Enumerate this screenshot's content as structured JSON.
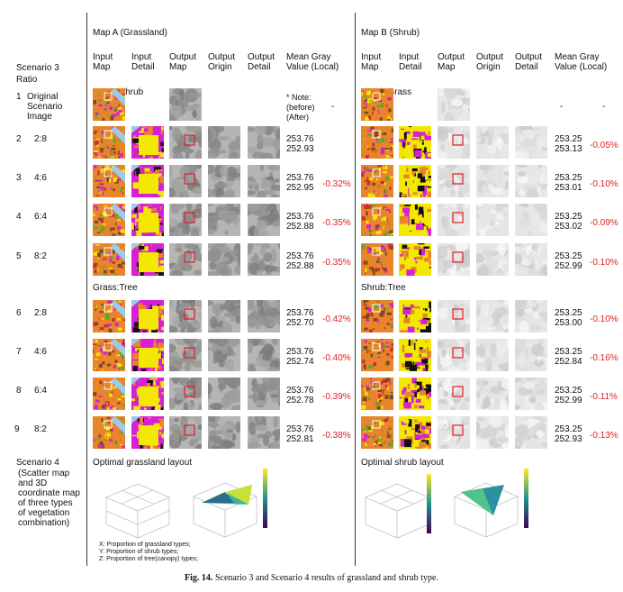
{
  "map_a_title": "Map A (Grassland)",
  "map_b_title": "Map B (Shrub)",
  "col_headers_a": [
    "Input\nMap",
    "Input\nDetail",
    "Output\nMap",
    "Output\nOrigin",
    "Output\nDetail",
    "Mean Gray\nValue (Local)"
  ],
  "col_headers_b": [
    "Input\nMap",
    "Input\nDetail",
    "Output\nMap",
    "Output\nOrigin",
    "Output\nDetail",
    "Mean Gray\nValue (Local)"
  ],
  "scenario3_label": "Scenario 3",
  "ratio_label": "Ratio",
  "group1_a": "Grass:Shrub",
  "group1_b": "Shrub:Grass",
  "group2_a": "Grass:Tree",
  "group2_b": "Shrub:Tree",
  "row1": {
    "num": "1",
    "label": "Original\nScenario\nImage",
    "note": "* Note:\n(before)\n(After)",
    "a_dash": "-",
    "b_dash1": "-",
    "b_dash2": "-"
  },
  "rows": [
    {
      "num": "2",
      "ratio": "2:8",
      "a_vals": "253.76\n252.93",
      "a_pct": "",
      "b_vals": "253.25\n253.13",
      "b_pct": "-0.05%"
    },
    {
      "num": "3",
      "ratio": "4:6",
      "a_vals": "253.76\n252.95",
      "a_pct": "-0.32%",
      "b_vals": "253.25\n253.01",
      "b_pct": "-0.10%"
    },
    {
      "num": "4",
      "ratio": "6:4",
      "a_vals": "253.76\n252.88",
      "a_pct": "-0.35%",
      "b_vals": "253.25\n253.02",
      "b_pct": "-0.09%"
    },
    {
      "num": "5",
      "ratio": "8:2",
      "a_vals": "253.76\n252.88",
      "a_pct": "-0.35%",
      "b_vals": "253.25\n252.99",
      "b_pct": "-0.10%"
    },
    {
      "num": "6",
      "ratio": "2:8",
      "a_vals": "253.76\n252.70",
      "a_pct": "-0.42%",
      "b_vals": "253.25\n253.00",
      "b_pct": "-0.10%"
    },
    {
      "num": "7",
      "ratio": "4:6",
      "a_vals": "253.76\n252.74",
      "a_pct": "-0.40%",
      "b_vals": "253.25\n252.84",
      "b_pct": "-0.16%"
    },
    {
      "num": "8",
      "ratio": "6:4",
      "a_vals": "253.76\n252.78",
      "a_pct": "-0.39%",
      "b_vals": "253.25\n252.99",
      "b_pct": "-0.11%"
    },
    {
      "num": "9",
      "ratio": "8:2",
      "a_vals": "253.76\n252.81",
      "a_pct": "-0.38%",
      "b_vals": "253.25\n252.93",
      "b_pct": "-0.13%"
    }
  ],
  "scenario4_label": "Scenario 4",
  "scenario4_desc": "(Scatter map\nand 3D\ncoordinate map\nof three types\nof vegetation\ncombination)",
  "optimal_a": "Optimal grassland layout",
  "optimal_b": "Optimal shrub layout",
  "legend_notes": [
    "X: Proportion of grassland types;",
    "Y: Proportion of shrub types;",
    "Z: Proportion of tree(canopy) types;"
  ],
  "caption_bold": "Fig. 14.",
  "caption_text": "Scenario 3 and Scenario 4 results of grassland and shrub type.",
  "colors": {
    "red": "#e02020",
    "magenta": "#d81fd8",
    "yellow": "#f2e800",
    "orange": "#e8842a",
    "green": "#5aa832",
    "blue_water": "#9ec9e8"
  }
}
